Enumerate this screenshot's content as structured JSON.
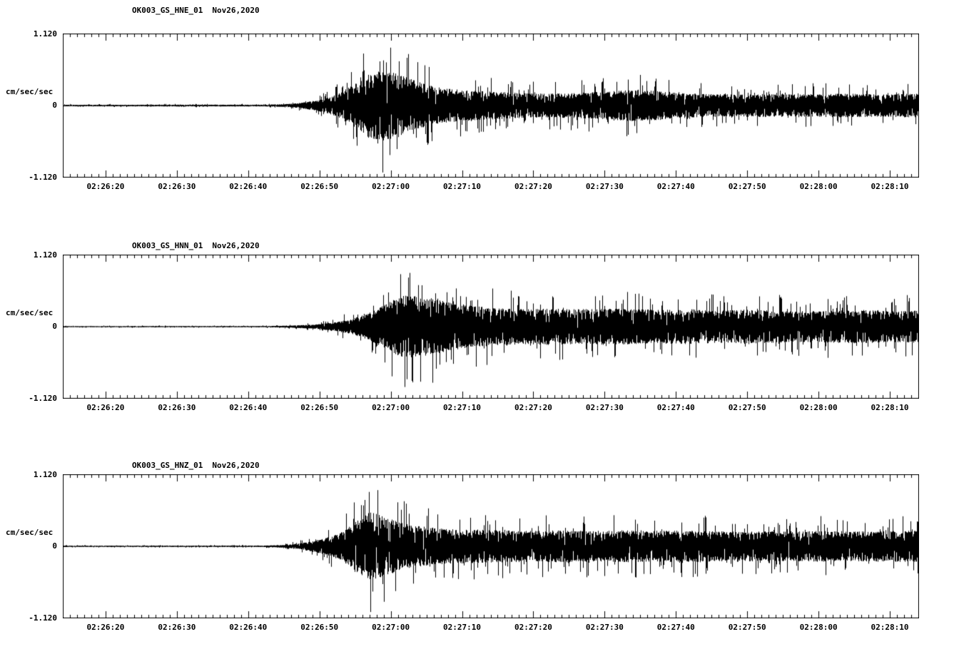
{
  "colors": {
    "background": "#ffffff",
    "trace": "#000000"
  },
  "chart_data": [
    {
      "type": "line",
      "subtype": "seismogram",
      "title": {
        "station": "OK003_GS_HNE_01",
        "date": "Nov26,2020"
      },
      "ylabel": "cm/sec/sec",
      "y_tick_labels": [
        "1.120",
        "0",
        "-1.120"
      ],
      "ylim": [
        -1.12,
        1.12
      ],
      "x_span_s": 120,
      "x_tick_offsets_s": [
        6,
        16,
        26,
        36,
        46,
        56,
        66,
        76,
        86,
        96,
        106,
        116
      ],
      "x_tick_labels": [
        "02:26:20",
        "02:26:30",
        "02:26:40",
        "02:26:50",
        "02:27:00",
        "02:27:10",
        "02:27:20",
        "02:27:30",
        "02:27:40",
        "02:27:50",
        "02:28:00",
        "02:28:10"
      ],
      "grid": false,
      "legend": "none",
      "envelope": [
        [
          0,
          0.022
        ],
        [
          28,
          0.025
        ],
        [
          31,
          0.04
        ],
        [
          33,
          0.07
        ],
        [
          35,
          0.13
        ],
        [
          37,
          0.22
        ],
        [
          39,
          0.38
        ],
        [
          41,
          0.65
        ],
        [
          43,
          0.95
        ],
        [
          45,
          1.0
        ],
        [
          47,
          0.9
        ],
        [
          49,
          0.74
        ],
        [
          51,
          0.6
        ],
        [
          53,
          0.5
        ],
        [
          56,
          0.44
        ],
        [
          60,
          0.4
        ],
        [
          64,
          0.36
        ],
        [
          68,
          0.34
        ],
        [
          72,
          0.36
        ],
        [
          76,
          0.4
        ],
        [
          80,
          0.45
        ],
        [
          83,
          0.42
        ],
        [
          86,
          0.36
        ],
        [
          90,
          0.33
        ],
        [
          94,
          0.32
        ],
        [
          98,
          0.33
        ],
        [
          102,
          0.32
        ],
        [
          106,
          0.33
        ],
        [
          110,
          0.34
        ],
        [
          114,
          0.32
        ],
        [
          120,
          0.34
        ]
      ]
    },
    {
      "type": "line",
      "subtype": "seismogram",
      "title": {
        "station": "OK003_GS_HNN_01",
        "date": "Nov26,2020"
      },
      "ylabel": "cm/sec/sec",
      "y_tick_labels": [
        "1.120",
        "0",
        "-1.120"
      ],
      "ylim": [
        -1.12,
        1.12
      ],
      "x_span_s": 120,
      "x_tick_offsets_s": [
        6,
        16,
        26,
        36,
        46,
        56,
        66,
        76,
        86,
        96,
        106,
        116
      ],
      "x_tick_labels": [
        "02:26:20",
        "02:26:30",
        "02:26:40",
        "02:26:50",
        "02:27:00",
        "02:27:10",
        "02:27:20",
        "02:27:30",
        "02:27:40",
        "02:27:50",
        "02:28:00",
        "02:28:10"
      ],
      "grid": false,
      "legend": "none",
      "envelope": [
        [
          0,
          0.015
        ],
        [
          28,
          0.018
        ],
        [
          32,
          0.03
        ],
        [
          35,
          0.06
        ],
        [
          38,
          0.12
        ],
        [
          40,
          0.2
        ],
        [
          42,
          0.32
        ],
        [
          44,
          0.5
        ],
        [
          46,
          0.75
        ],
        [
          48,
          0.9
        ],
        [
          50,
          0.86
        ],
        [
          52,
          0.8
        ],
        [
          54,
          0.7
        ],
        [
          57,
          0.6
        ],
        [
          60,
          0.55
        ],
        [
          64,
          0.5
        ],
        [
          68,
          0.52
        ],
        [
          72,
          0.5
        ],
        [
          76,
          0.52
        ],
        [
          80,
          0.5
        ],
        [
          84,
          0.48
        ],
        [
          88,
          0.5
        ],
        [
          92,
          0.46
        ],
        [
          96,
          0.48
        ],
        [
          100,
          0.46
        ],
        [
          104,
          0.44
        ],
        [
          108,
          0.46
        ],
        [
          112,
          0.48
        ],
        [
          116,
          0.44
        ],
        [
          120,
          0.46
        ]
      ]
    },
    {
      "type": "line",
      "subtype": "seismogram",
      "title": {
        "station": "OK003_GS_HNZ_01",
        "date": "Nov26,2020"
      },
      "ylabel": "cm/sec/sec",
      "y_tick_labels": [
        "1.120",
        "0",
        "-1.120"
      ],
      "ylim": [
        -1.12,
        1.12
      ],
      "x_span_s": 120,
      "x_tick_offsets_s": [
        6,
        16,
        26,
        36,
        46,
        56,
        66,
        76,
        86,
        96,
        106,
        116
      ],
      "x_tick_labels": [
        "02:26:20",
        "02:26:30",
        "02:26:40",
        "02:26:50",
        "02:27:00",
        "02:27:10",
        "02:27:20",
        "02:27:30",
        "02:27:40",
        "02:27:50",
        "02:28:00",
        "02:28:10"
      ],
      "grid": false,
      "legend": "none",
      "envelope": [
        [
          0,
          0.018
        ],
        [
          28,
          0.02
        ],
        [
          31,
          0.04
        ],
        [
          33,
          0.08
        ],
        [
          35,
          0.15
        ],
        [
          37,
          0.25
        ],
        [
          39,
          0.4
        ],
        [
          41,
          0.7
        ],
        [
          43,
          1.0
        ],
        [
          45,
          0.85
        ],
        [
          47,
          0.7
        ],
        [
          49,
          0.6
        ],
        [
          51,
          0.55
        ],
        [
          54,
          0.5
        ],
        [
          58,
          0.48
        ],
        [
          62,
          0.46
        ],
        [
          66,
          0.44
        ],
        [
          70,
          0.46
        ],
        [
          74,
          0.44
        ],
        [
          78,
          0.46
        ],
        [
          82,
          0.44
        ],
        [
          86,
          0.45
        ],
        [
          90,
          0.44
        ],
        [
          94,
          0.42
        ],
        [
          98,
          0.44
        ],
        [
          102,
          0.42
        ],
        [
          106,
          0.44
        ],
        [
          110,
          0.42
        ],
        [
          114,
          0.44
        ],
        [
          120,
          0.45
        ]
      ]
    }
  ]
}
